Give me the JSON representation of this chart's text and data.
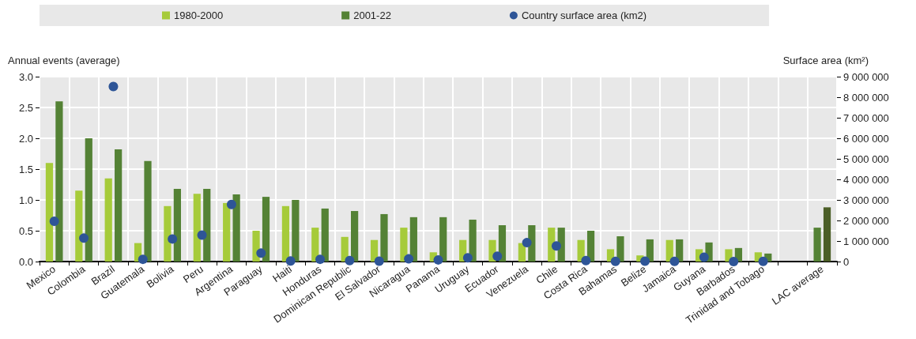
{
  "chart_data": {
    "type": "bar",
    "ylabel": "Annual events (average)",
    "y2label": "Surface area (km²)",
    "categories": [
      "Mexico",
      "Colombia",
      "Brazil",
      "Guatemala",
      "Bolivia",
      "Peru",
      "Argentina",
      "Paraguay",
      "Haiti",
      "Honduras",
      "Dominican Republic",
      "El Salvador",
      "Nicaragua",
      "Panama",
      "Uruguay",
      "Ecuador",
      "Venezuela",
      "Chile",
      "Costa Rica",
      "Bahamas",
      "Belize",
      "Jamaica",
      "Guyana",
      "Barbados",
      "Trinidad and Tobago",
      null,
      "LAC average"
    ],
    "series": [
      {
        "name": "1980-2000",
        "color": "#a6cb3a",
        "colors": [
          "#a6cb3a",
          "#a6cb3a",
          "#a6cb3a",
          "#a6cb3a",
          "#a6cb3a",
          "#a6cb3a",
          "#a6cb3a",
          "#a6cb3a",
          "#a6cb3a",
          "#a6cb3a",
          "#a6cb3a",
          "#a6cb3a",
          "#a6cb3a",
          "#a6cb3a",
          "#a6cb3a",
          "#a6cb3a",
          "#a6cb3a",
          "#a6cb3a",
          "#a6cb3a",
          "#a6cb3a",
          "#a6cb3a",
          "#a6cb3a",
          "#a6cb3a",
          "#a6cb3a",
          "#a6cb3a",
          null,
          "#548235"
        ],
        "values": [
          1.6,
          1.15,
          1.35,
          0.3,
          0.9,
          1.1,
          0.95,
          0.5,
          0.9,
          0.55,
          0.4,
          0.35,
          0.55,
          0.15,
          0.35,
          0.35,
          0.3,
          0.55,
          0.35,
          0.2,
          0.1,
          0.35,
          0.2,
          0.2,
          0.15,
          null,
          0.55
        ]
      },
      {
        "name": "2001-22",
        "color": "#548235",
        "colors": [
          "#548235",
          "#548235",
          "#548235",
          "#548235",
          "#548235",
          "#548235",
          "#548235",
          "#548235",
          "#548235",
          "#548235",
          "#548235",
          "#548235",
          "#548235",
          "#548235",
          "#548235",
          "#548235",
          "#548235",
          "#548235",
          "#548235",
          "#548235",
          "#548235",
          "#548235",
          "#548235",
          "#548235",
          "#548235",
          null,
          "#4b5e27"
        ],
        "values": [
          2.6,
          2.0,
          1.82,
          1.63,
          1.18,
          1.18,
          1.09,
          1.05,
          1.0,
          0.86,
          0.82,
          0.77,
          0.72,
          0.72,
          0.68,
          0.59,
          0.59,
          0.55,
          0.5,
          0.41,
          0.36,
          0.36,
          0.31,
          0.22,
          0.13,
          null,
          0.88
        ]
      },
      {
        "name": "Country surface area (km2)",
        "type": "scatter",
        "axis": "y2",
        "marker": "circle",
        "color": "#2e5597",
        "values": [
          1960000,
          1140000,
          8520000,
          110000,
          1100000,
          1290000,
          2780000,
          410000,
          30000,
          110000,
          50000,
          20000,
          130000,
          80000,
          180000,
          260000,
          920000,
          760000,
          50000,
          10000,
          20000,
          10000,
          210000,
          0,
          10000,
          null,
          null
        ]
      }
    ],
    "ylim": [
      0,
      3
    ],
    "yticks": [
      {
        "value": 0,
        "label": "0.0"
      },
      {
        "value": 0.5,
        "label": "0.5"
      },
      {
        "value": 1,
        "label": "1.0"
      },
      {
        "value": 1.5,
        "label": "1.5"
      },
      {
        "value": 2,
        "label": "2.0"
      },
      {
        "value": 2.5,
        "label": "2.5"
      },
      {
        "value": 3,
        "label": "3.0"
      }
    ],
    "y2lim": [
      0,
      9000000
    ],
    "y2ticks": [
      0,
      {
        "value": 1000000,
        "label": "1 000 000"
      },
      {
        "value": 2000000,
        "label": "2 000 000"
      },
      {
        "value": 3000000,
        "label": "3 000 000"
      },
      {
        "value": 4000000,
        "label": "4 000 000"
      },
      {
        "value": 5000000,
        "label": "5 000 000"
      },
      {
        "value": 6000000,
        "label": "6 000 000"
      },
      {
        "value": 7000000,
        "label": "7 000 000"
      },
      {
        "value": 8000000,
        "label": "8 000 000"
      },
      {
        "value": 9000000,
        "label": "9 000 000"
      }
    ],
    "grid": true,
    "legend": "top"
  }
}
